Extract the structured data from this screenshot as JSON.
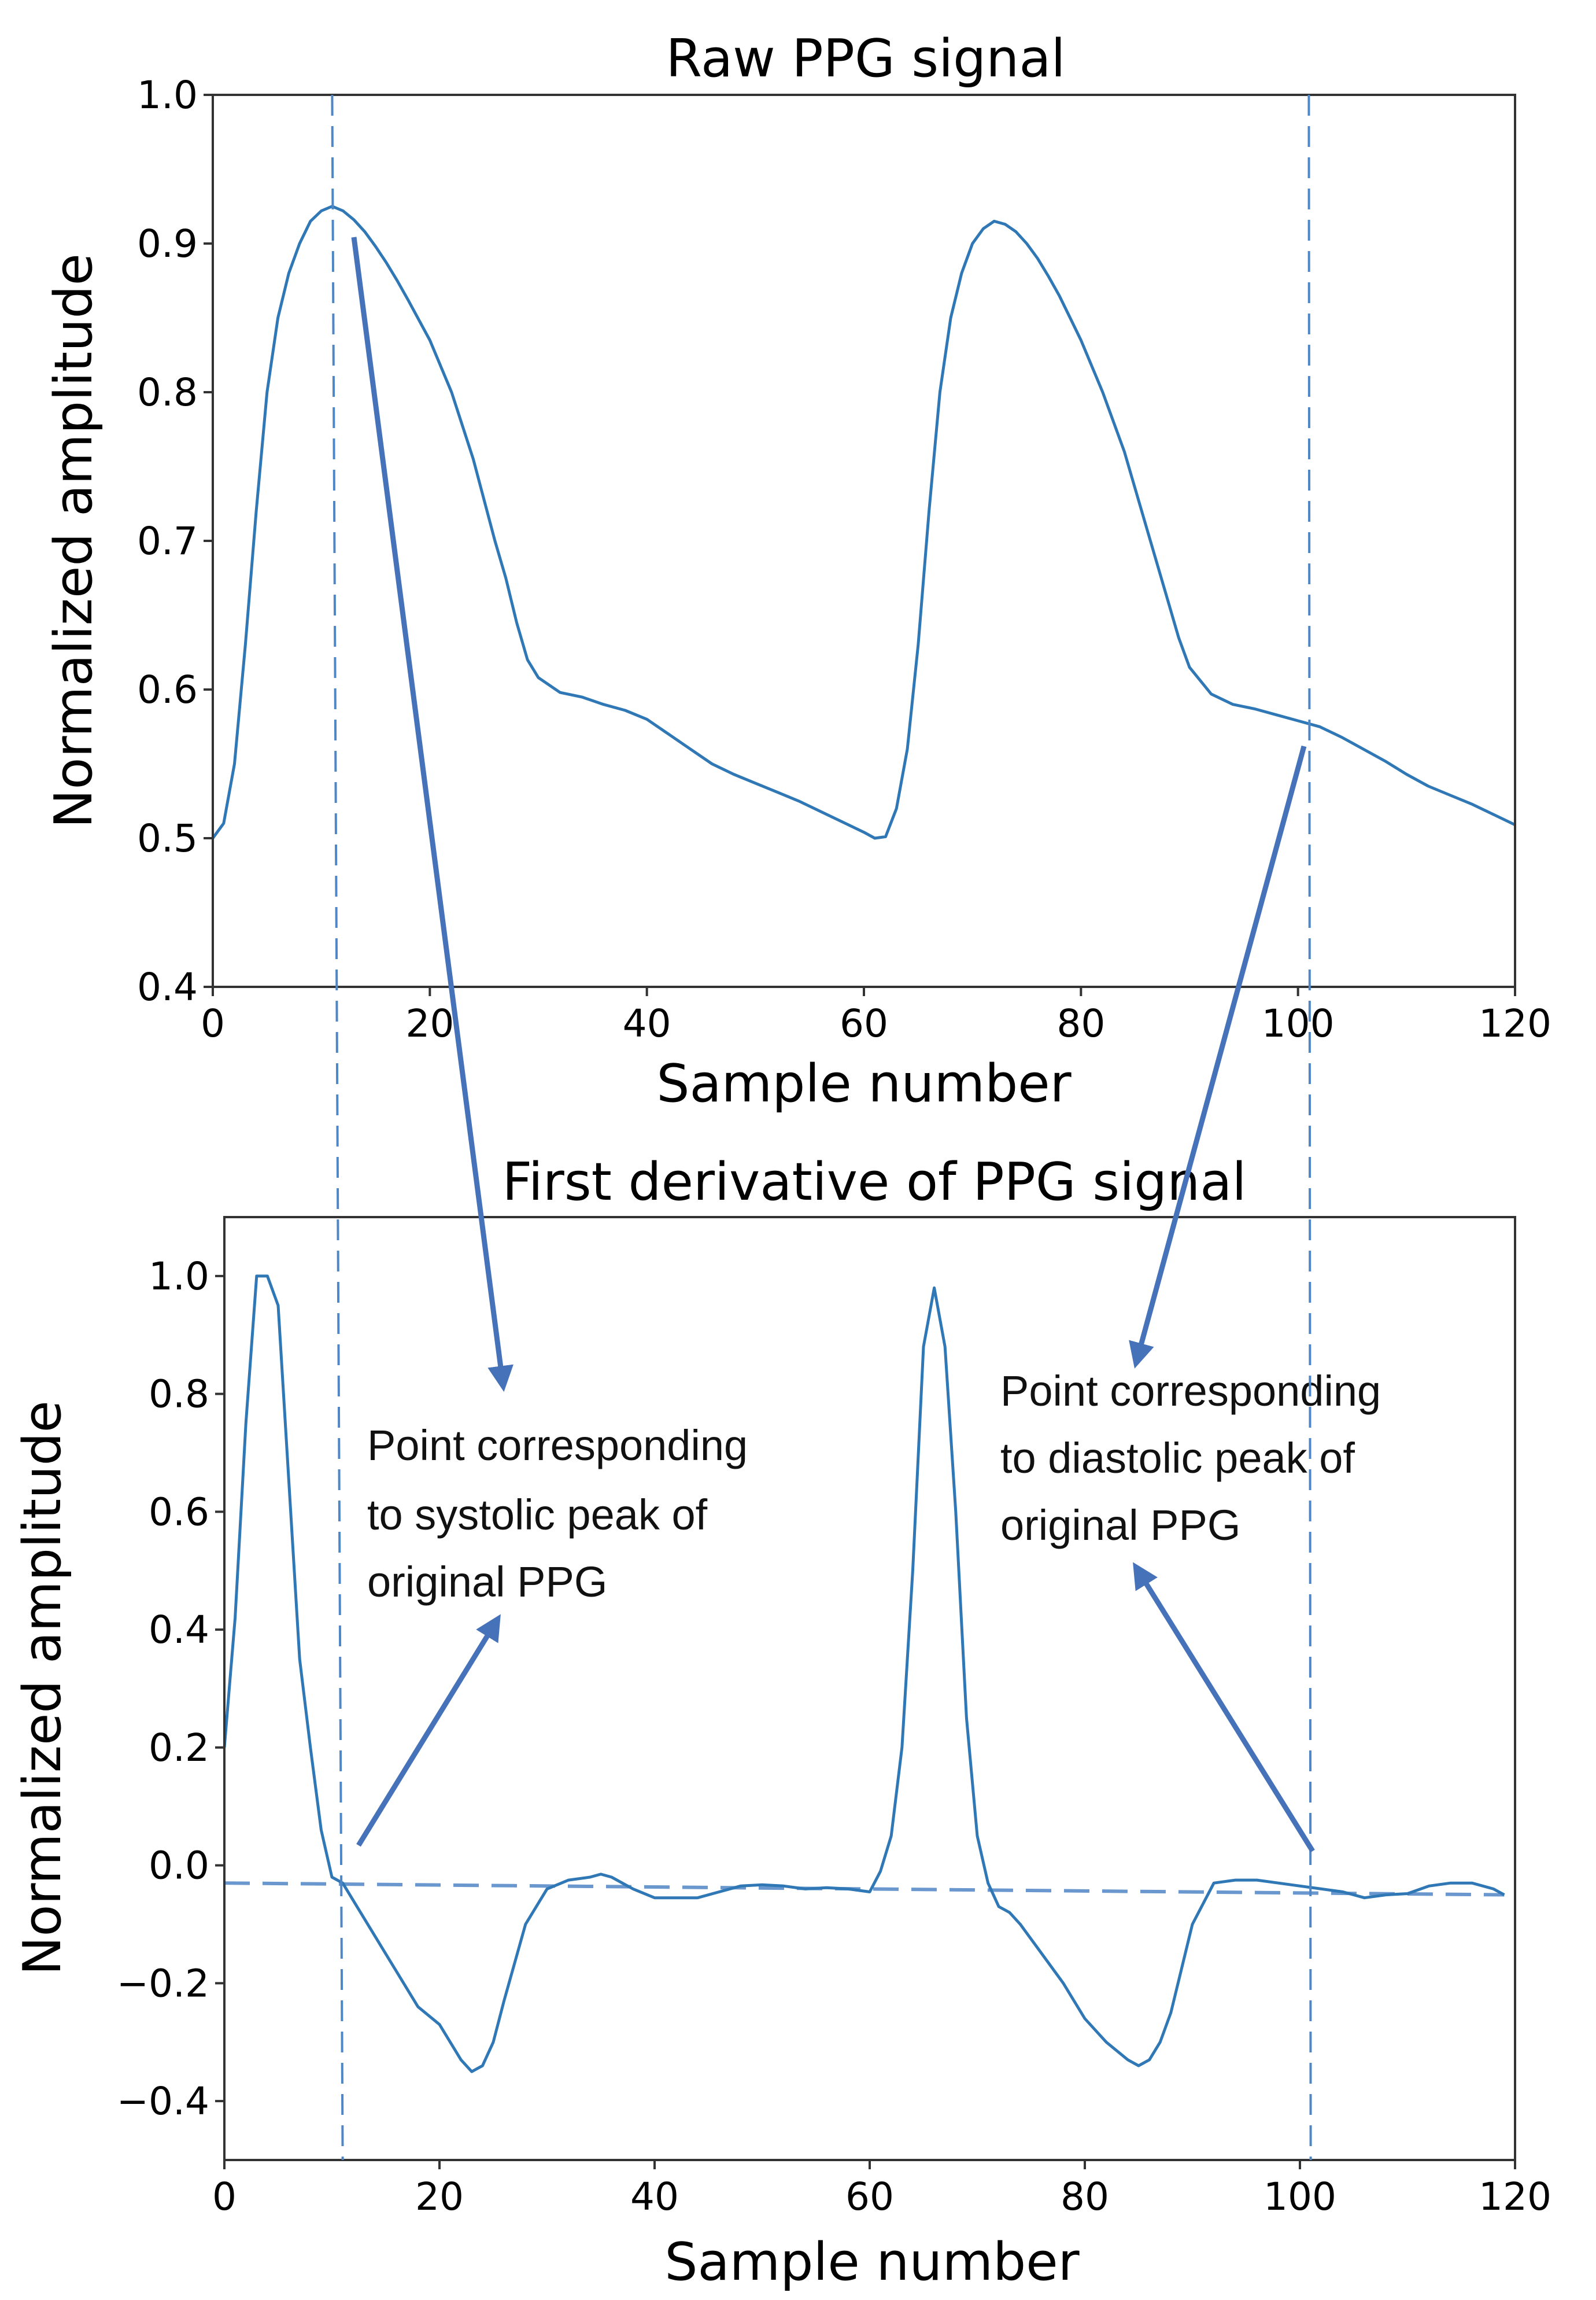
{
  "colors": {
    "line": "#2f78b5",
    "guide": "#4f86c6",
    "arrow": "#4572b8",
    "axis": "#333333"
  },
  "chart_data": [
    {
      "type": "line",
      "title": "Raw PPG signal",
      "xlabel": "Sample number",
      "ylabel": "Normalized amplitude",
      "xlim": [
        0,
        120
      ],
      "ylim": [
        0.4,
        1.0
      ],
      "xticks": [
        0,
        20,
        40,
        60,
        80,
        100,
        120
      ],
      "xtick_labels": [
        "0",
        "20",
        "40",
        "60",
        "80",
        "100",
        "120"
      ],
      "yticks": [
        0.4,
        0.5,
        0.6,
        0.7,
        0.8,
        0.9,
        1.0
      ],
      "ytick_labels": [
        "0.4",
        "0.5",
        "0.6",
        "0.7",
        "0.8",
        "0.9",
        "1.0"
      ],
      "series": [
        {
          "name": "Raw PPG",
          "x": [
            0,
            1,
            2,
            3,
            4,
            5,
            6,
            7,
            8,
            9,
            10,
            11,
            12,
            13,
            14,
            15,
            16,
            17,
            18,
            20,
            22,
            24,
            26,
            27,
            28,
            29,
            30,
            32,
            34,
            36,
            38,
            40,
            42,
            44,
            46,
            48,
            50,
            52,
            54,
            56,
            58,
            60,
            61,
            62,
            63,
            64,
            65,
            66,
            67,
            68,
            69,
            70,
            71,
            72,
            73,
            74,
            75,
            76,
            77,
            78,
            79,
            80,
            82,
            84,
            86,
            88,
            89,
            90,
            92,
            94,
            96,
            98,
            100,
            102,
            104,
            106,
            108,
            110,
            112,
            114,
            116,
            118,
            120
          ],
          "values": [
            0.5,
            0.51,
            0.55,
            0.63,
            0.72,
            0.8,
            0.85,
            0.88,
            0.9,
            0.915,
            0.922,
            0.925,
            0.922,
            0.916,
            0.908,
            0.898,
            0.887,
            0.875,
            0.862,
            0.835,
            0.8,
            0.755,
            0.7,
            0.675,
            0.645,
            0.62,
            0.608,
            0.598,
            0.595,
            0.59,
            0.586,
            0.58,
            0.57,
            0.56,
            0.55,
            0.543,
            0.537,
            0.531,
            0.525,
            0.518,
            0.511,
            0.504,
            0.5,
            0.501,
            0.52,
            0.56,
            0.63,
            0.72,
            0.8,
            0.85,
            0.88,
            0.9,
            0.91,
            0.915,
            0.913,
            0.908,
            0.9,
            0.89,
            0.878,
            0.865,
            0.85,
            0.835,
            0.8,
            0.76,
            0.71,
            0.66,
            0.635,
            0.615,
            0.597,
            0.59,
            0.587,
            0.583,
            0.579,
            0.575,
            0.568,
            0.56,
            0.552,
            0.543,
            0.535,
            0.529,
            0.523,
            0.516,
            0.509
          ]
        }
      ],
      "vlines": [
        11,
        101
      ]
    },
    {
      "type": "line",
      "title": "First derivative of PPG signal",
      "xlabel": "Sample number",
      "ylabel": "Normalized amplitude",
      "xlim": [
        0,
        120
      ],
      "ylim": [
        -0.5,
        1.1
      ],
      "xticks": [
        0,
        20,
        40,
        60,
        80,
        100,
        120
      ],
      "xtick_labels": [
        "0",
        "20",
        "40",
        "60",
        "80",
        "100",
        "120"
      ],
      "yticks": [
        -0.4,
        -0.2,
        0.0,
        0.2,
        0.4,
        0.6,
        0.8,
        1.0
      ],
      "ytick_labels": [
        "−0.4",
        "−0.2",
        "0.0",
        "0.2",
        "0.4",
        "0.6",
        "0.8",
        "1.0"
      ],
      "series": [
        {
          "name": "First derivative",
          "x": [
            0,
            1,
            2,
            3,
            4,
            5,
            6,
            7,
            8,
            9,
            10,
            11,
            12,
            14,
            16,
            18,
            20,
            22,
            23,
            24,
            25,
            26,
            28,
            30,
            32,
            34,
            35,
            36,
            38,
            40,
            42,
            44,
            46,
            48,
            50,
            52,
            54,
            56,
            58,
            60,
            61,
            62,
            63,
            64,
            65,
            66,
            67,
            68,
            69,
            70,
            71,
            72,
            73,
            74,
            76,
            78,
            80,
            82,
            84,
            85,
            86,
            87,
            88,
            90,
            92,
            94,
            96,
            98,
            100,
            102,
            104,
            106,
            108,
            110,
            112,
            114,
            116,
            118,
            119
          ],
          "values": [
            0.2,
            0.42,
            0.75,
            1.0,
            1.0,
            0.95,
            0.65,
            0.35,
            0.2,
            0.06,
            -0.02,
            -0.03,
            -0.06,
            -0.12,
            -0.18,
            -0.24,
            -0.27,
            -0.33,
            -0.35,
            -0.34,
            -0.3,
            -0.23,
            -0.1,
            -0.04,
            -0.025,
            -0.02,
            -0.015,
            -0.02,
            -0.04,
            -0.055,
            -0.055,
            -0.055,
            -0.045,
            -0.035,
            -0.033,
            -0.035,
            -0.04,
            -0.038,
            -0.04,
            -0.045,
            -0.01,
            0.05,
            0.2,
            0.5,
            0.88,
            0.98,
            0.88,
            0.6,
            0.25,
            0.05,
            -0.03,
            -0.07,
            -0.08,
            -0.1,
            -0.15,
            -0.2,
            -0.26,
            -0.3,
            -0.33,
            -0.34,
            -0.33,
            -0.3,
            -0.25,
            -0.1,
            -0.03,
            -0.025,
            -0.025,
            -0.03,
            -0.035,
            -0.04,
            -0.045,
            -0.055,
            -0.05,
            -0.048,
            -0.035,
            -0.03,
            -0.03,
            -0.04,
            -0.05
          ]
        }
      ],
      "vlines": [
        11,
        101
      ],
      "baseline": {
        "x": [
          0,
          119
        ],
        "y": [
          -0.03,
          -0.05
        ]
      }
    }
  ],
  "annotations": {
    "systolic": [
      "Point corresponding",
      "to systolic peak of",
      "original PPG"
    ],
    "diastolic": [
      "Point corresponding",
      "to diastolic peak of",
      "original PPG"
    ]
  }
}
